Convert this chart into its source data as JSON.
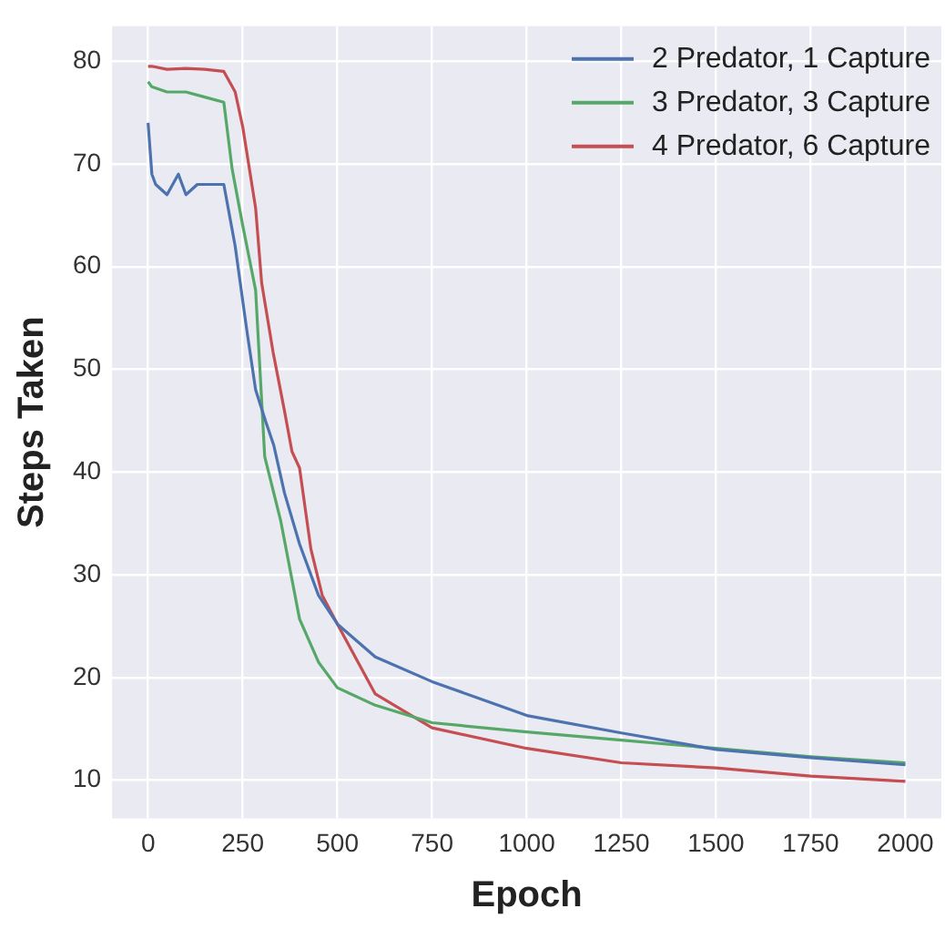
{
  "chart_data": {
    "type": "line",
    "xlabel": "Epoch",
    "ylabel": "Steps Taken",
    "xlim": [
      -95,
      2095
    ],
    "ylim": [
      6.3,
      83.4
    ],
    "xticks": [
      0,
      250,
      500,
      750,
      1000,
      1250,
      1500,
      1750,
      2000
    ],
    "yticks": [
      10,
      20,
      30,
      40,
      50,
      60,
      70,
      80
    ],
    "grid": true,
    "legend": "top right",
    "line_style": "solid",
    "marker": "none",
    "series": [
      {
        "name": "2 Predator, 1 Capture",
        "color": "#4c72b0",
        "x": [
          0,
          10,
          20,
          50,
          80,
          100,
          130,
          160,
          200,
          230,
          260,
          284,
          310,
          332,
          360,
          400,
          450,
          500,
          600,
          750,
          1000,
          1250,
          1500,
          1750,
          2000
        ],
        "values": [
          74,
          69,
          68,
          67,
          69,
          67,
          68,
          68,
          68,
          62,
          54,
          48,
          45,
          42.6,
          38,
          33,
          28,
          25.2,
          22,
          19.6,
          16.3,
          14.6,
          13,
          12.2,
          11.5
        ]
      },
      {
        "name": "3 Predator, 3 Capture",
        "color": "#55a868",
        "x": [
          0,
          10,
          50,
          100,
          150,
          200,
          222,
          250,
          284,
          308,
          350,
          400,
          450,
          500,
          600,
          750,
          1000,
          1250,
          1500,
          1750,
          2000
        ],
        "values": [
          78,
          77.5,
          77,
          77,
          76.5,
          76,
          69.5,
          64,
          57.7,
          41.5,
          35.3,
          25.7,
          21.5,
          19,
          17.3,
          15.6,
          14.7,
          13.9,
          13.1,
          12.3,
          11.7
        ]
      },
      {
        "name": "4 Predator, 6 Capture",
        "color": "#c44e52",
        "x": [
          0,
          10,
          50,
          100,
          150,
          200,
          230,
          250,
          284,
          300,
          330,
          360,
          380,
          400,
          430,
          460,
          500,
          600,
          750,
          1000,
          1250,
          1500,
          1750,
          2000
        ],
        "values": [
          79.5,
          79.5,
          79.2,
          79.3,
          79.2,
          79,
          77,
          73.6,
          65.7,
          58.4,
          51.7,
          46,
          42,
          40.4,
          32.5,
          28,
          25.2,
          18.4,
          15.1,
          13.1,
          11.7,
          11.2,
          10.4,
          9.9
        ]
      }
    ]
  }
}
